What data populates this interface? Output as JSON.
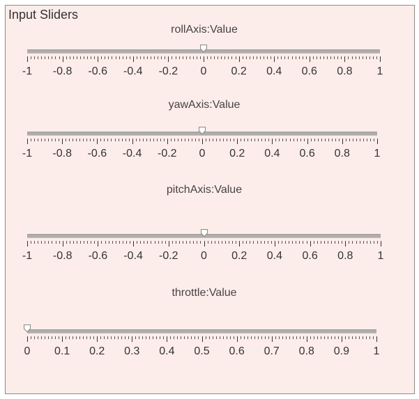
{
  "panel": {
    "title": "Input Sliders"
  },
  "sliders": [
    {
      "label": "rollAxis:Value",
      "min": -1,
      "max": 1,
      "value": 0,
      "tick_labels": [
        "-1",
        "-0.8",
        "-0.6",
        "-0.4",
        "-0.2",
        "0",
        "0.2",
        "0.4",
        "0.6",
        "0.8",
        "1"
      ]
    },
    {
      "label": "yawAxis:Value",
      "min": -1,
      "max": 1,
      "value": 0,
      "tick_labels": [
        "-1",
        "-0.8",
        "-0.6",
        "-0.4",
        "-0.2",
        "0",
        "0.2",
        "0.4",
        "0.6",
        "0.8",
        "1"
      ]
    },
    {
      "label": "pitchAxis:Value",
      "min": -1,
      "max": 1,
      "value": 0,
      "tick_labels": [
        "-1",
        "-0.8",
        "-0.6",
        "-0.4",
        "-0.2",
        "0",
        "0.2",
        "0.4",
        "0.6",
        "0.8",
        "1"
      ]
    },
    {
      "label": "throttle:Value",
      "min": 0,
      "max": 1,
      "value": 0,
      "tick_labels": [
        "0",
        "0.1",
        "0.2",
        "0.3",
        "0.4",
        "0.5",
        "0.6",
        "0.7",
        "0.8",
        "0.9",
        "1"
      ]
    }
  ]
}
